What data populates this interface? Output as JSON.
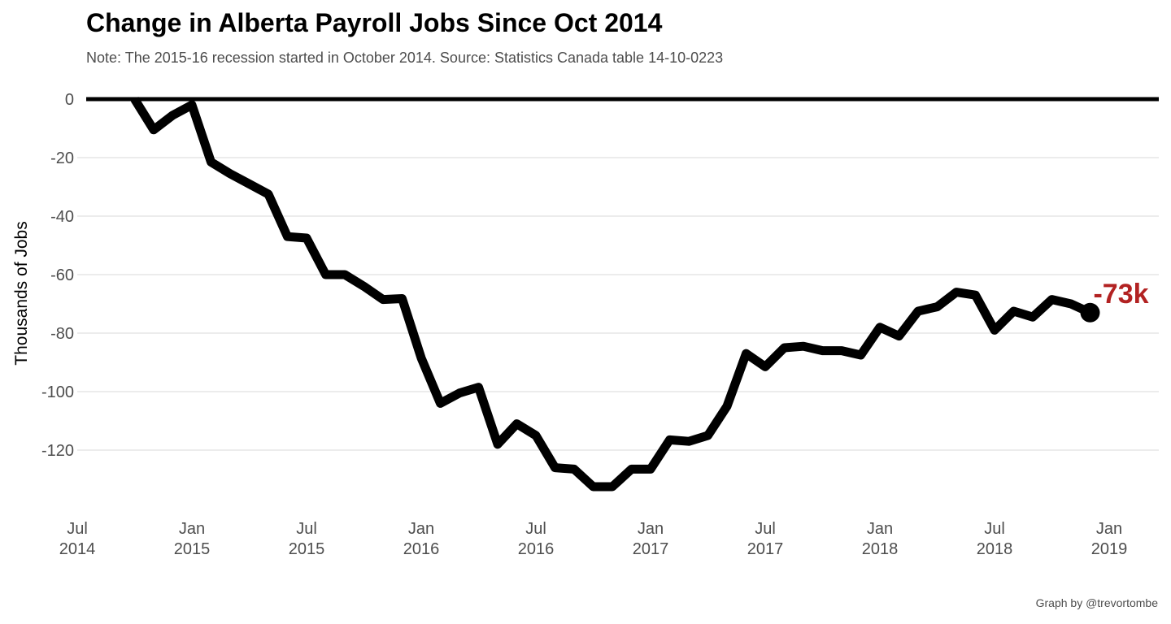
{
  "chart_data": {
    "type": "line",
    "title": "Change in Alberta Payroll Jobs Since Oct 2014",
    "subtitle": "Note: The 2015-16 recession started in October 2014. Source: Statistics Canada table 14-10-0223",
    "caption": "Graph by @trevortombe",
    "ylabel": "Thousands of Jobs",
    "xlabel": "",
    "ylim": [
      -140,
      2
    ],
    "xlim": [
      "2014-07",
      "2019-01"
    ],
    "y_ticks": [
      0,
      -20,
      -40,
      -60,
      -80,
      -100,
      -120
    ],
    "y_tick_labels": [
      "0",
      "-20",
      "-40",
      "-60",
      "-80",
      "-100",
      "-120"
    ],
    "x_ticks": [
      {
        "date": "2014-07",
        "line1": "Jul",
        "line2": "2014"
      },
      {
        "date": "2015-01",
        "line1": "Jan",
        "line2": "2015"
      },
      {
        "date": "2015-07",
        "line1": "Jul",
        "line2": "2015"
      },
      {
        "date": "2016-01",
        "line1": "Jan",
        "line2": "2016"
      },
      {
        "date": "2016-07",
        "line1": "Jul",
        "line2": "2016"
      },
      {
        "date": "2017-01",
        "line1": "Jan",
        "line2": "2017"
      },
      {
        "date": "2017-07",
        "line1": "Jul",
        "line2": "2017"
      },
      {
        "date": "2018-01",
        "line1": "Jan",
        "line2": "2018"
      },
      {
        "date": "2018-07",
        "line1": "Jul",
        "line2": "2018"
      },
      {
        "date": "2019-01",
        "line1": "Jan",
        "line2": "2019"
      }
    ],
    "grid": "horizontal",
    "reference_line": 0,
    "end_label": "-73k",
    "series": [
      {
        "x": [
          "2014-10",
          "2014-11",
          "2014-12",
          "2015-01",
          "2015-02",
          "2015-03",
          "2015-04",
          "2015-05",
          "2015-06",
          "2015-07",
          "2015-08",
          "2015-09",
          "2015-10",
          "2015-11",
          "2015-12",
          "2016-01",
          "2016-02",
          "2016-03",
          "2016-04",
          "2016-05",
          "2016-06",
          "2016-07",
          "2016-08",
          "2016-09",
          "2016-10",
          "2016-11",
          "2016-12",
          "2017-01",
          "2017-02",
          "2017-03",
          "2017-04",
          "2017-05",
          "2017-06",
          "2017-07",
          "2017-08",
          "2017-09",
          "2017-10",
          "2017-11",
          "2017-12",
          "2018-01",
          "2018-02",
          "2018-03",
          "2018-04",
          "2018-05",
          "2018-06",
          "2018-07",
          "2018-08",
          "2018-09",
          "2018-10",
          "2018-11",
          "2018-12"
        ],
        "y": [
          0,
          -10.5,
          -5.5,
          -2,
          -21.5,
          -25.5,
          -29,
          -32.5,
          -47,
          -47.5,
          -60,
          -60,
          -64,
          -68.5,
          -68.2,
          -88.5,
          -104,
          -100.5,
          -98.5,
          -118,
          -111,
          -115,
          -126,
          -126.5,
          -132.5,
          -132.5,
          -126.5,
          -126.5,
          -116.5,
          -117,
          -115,
          -105,
          -87,
          -91.5,
          -85,
          -84.5,
          -86,
          -86,
          -87.5,
          -78,
          -81,
          -72.5,
          -71,
          -66,
          -67,
          -79,
          -72.5,
          -74.5,
          -68.5,
          -70,
          -73
        ]
      }
    ]
  }
}
